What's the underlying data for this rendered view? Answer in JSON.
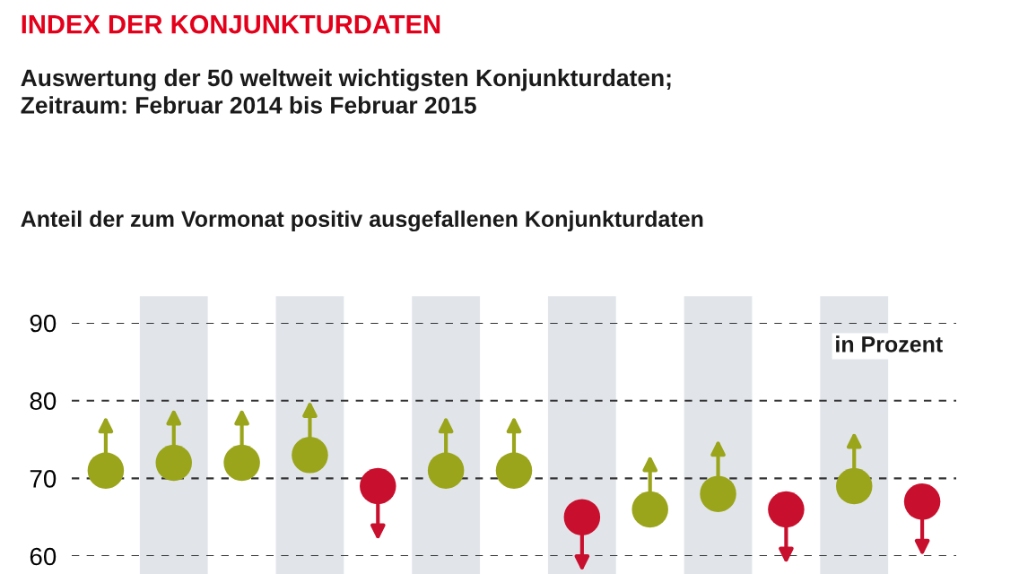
{
  "chart_data": {
    "type": "scatter",
    "title": "INDEX DER KONJUNKTURDATEN",
    "subtitle": "Auswertung der 50 weltweit wichtigsten Konjunkturdaten;\nZeitraum: Februar 2014 bis Februar 2015",
    "annotations": [
      "Anteil der zum Vormonat positiv ausgefallenen Konjunkturdaten",
      "in Prozent"
    ],
    "categories": [
      null,
      null,
      null,
      null,
      null,
      null,
      null,
      null,
      null,
      null,
      null,
      null,
      null
    ],
    "values": [
      71,
      72,
      72,
      73,
      69,
      71,
      71,
      65,
      66,
      68,
      66,
      69,
      67
    ],
    "colors": [
      "#9aa51b",
      "#9aa51b",
      "#9aa51b",
      "#9aa51b",
      "#c8102e",
      "#9aa51b",
      "#9aa51b",
      "#c8102e",
      "#9aa51b",
      "#9aa51b",
      "#c8102e",
      "#9aa51b",
      "#c8102e"
    ],
    "ylim": [
      60,
      90
    ],
    "yticks": [
      60,
      70,
      80,
      90
    ],
    "grid": "y",
    "marker": "circle"
  }
}
